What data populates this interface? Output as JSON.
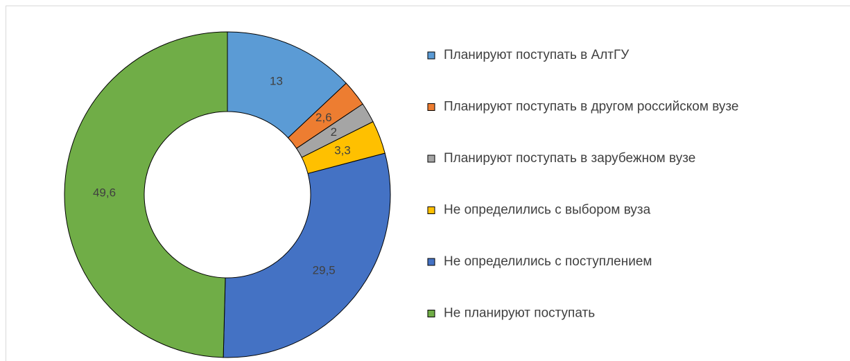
{
  "chart_data": {
    "type": "donut",
    "categories": [
      "Планируют поступать в АлтГУ",
      "Планируют поступать в другом российском вузе",
      "Планируют поступать в зарубежном вузе",
      "Не определились с выбором вуза",
      "Не определились с поступлением",
      "Не планируют поступать"
    ],
    "values": [
      13,
      2.6,
      2,
      3.3,
      29.5,
      49.6
    ],
    "value_labels": [
      "13",
      "2,6",
      "2",
      "3,3",
      "29,5",
      "49,6"
    ],
    "colors": [
      "#5b9bd5",
      "#ed7d31",
      "#a5a5a5",
      "#ffc000",
      "#4472c4",
      "#70ad47"
    ],
    "legend": "right"
  }
}
